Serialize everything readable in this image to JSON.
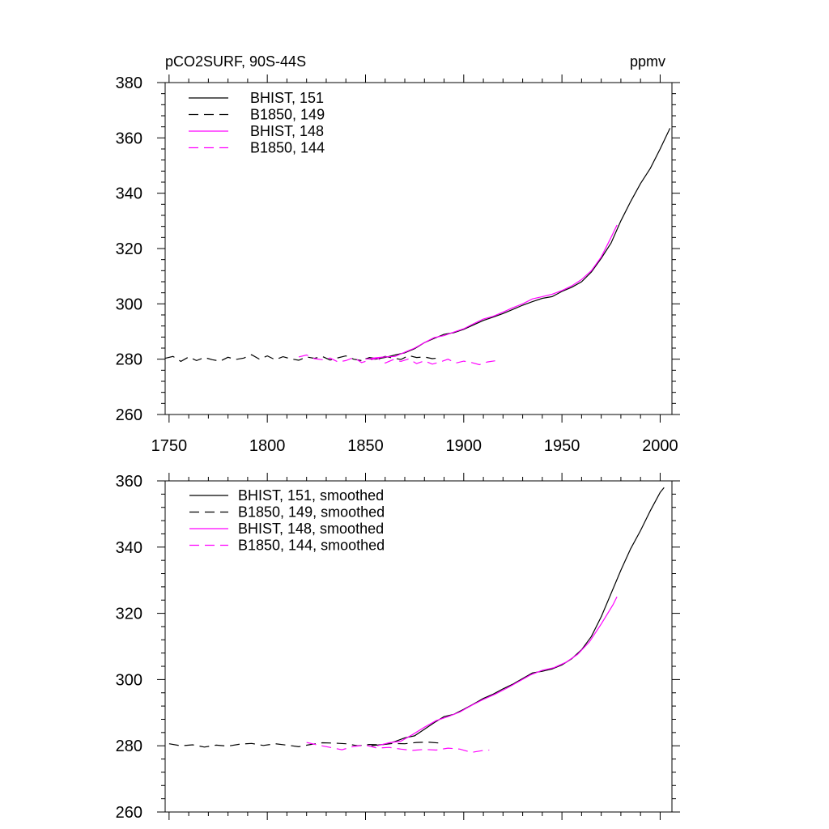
{
  "colors": {
    "black": "#000000",
    "magenta": "#ff00ff",
    "background": "#ffffff"
  },
  "chart_data": [
    {
      "type": "line",
      "title": "pCO2SURF, 90S-44S",
      "units": "ppmv",
      "xlim": [
        1748,
        2006
      ],
      "ylim": [
        260,
        380
      ],
      "xticks": [
        1750,
        1800,
        1850,
        1900,
        1950,
        2000
      ],
      "xtick_labels": [
        "1750",
        "1800",
        "1850",
        "1900",
        "1950",
        "2000"
      ],
      "yticks": [
        260,
        280,
        300,
        320,
        340,
        360,
        380
      ],
      "ytick_labels": [
        "260",
        "280",
        "300",
        "320",
        "340",
        "360",
        "380"
      ],
      "grid": false,
      "legend_position": "top-left",
      "series": [
        {
          "name": "BHIST, 151",
          "color": "#000000",
          "dash": "solid",
          "x": [
            1850,
            1855,
            1860,
            1865,
            1870,
            1875,
            1880,
            1885,
            1890,
            1895,
            1900,
            1905,
            1910,
            1915,
            1920,
            1925,
            1930,
            1935,
            1940,
            1945,
            1950,
            1955,
            1960,
            1965,
            1970,
            1975,
            1980,
            1985,
            1990,
            1995,
            2000,
            2005
          ],
          "y": [
            280.2,
            280.0,
            280.6,
            281.5,
            282.3,
            283.8,
            286.0,
            287.5,
            289.0,
            289.6,
            290.8,
            292.4,
            294.0,
            295.2,
            296.5,
            298.0,
            299.5,
            300.8,
            302.0,
            302.6,
            304.5,
            306.0,
            308.0,
            311.5,
            316.5,
            322.0,
            330.0,
            337.0,
            343.5,
            349.0,
            356.0,
            363.5
          ]
        },
        {
          "name": "B1850, 149",
          "color": "#000000",
          "dash": "dashed",
          "x": [
            1748,
            1752,
            1756,
            1760,
            1764,
            1768,
            1772,
            1776,
            1780,
            1784,
            1788,
            1792,
            1796,
            1800,
            1804,
            1808,
            1812,
            1816,
            1820,
            1824,
            1828,
            1832,
            1836,
            1840,
            1844,
            1848,
            1852,
            1856,
            1860,
            1864,
            1868,
            1872,
            1876,
            1880,
            1884,
            1888
          ],
          "y": [
            280.3,
            281.0,
            279.2,
            280.8,
            279.5,
            280.6,
            279.8,
            279.3,
            280.7,
            279.9,
            280.4,
            281.6,
            280.0,
            281.2,
            279.8,
            280.9,
            280.1,
            279.6,
            280.8,
            280.3,
            281.0,
            279.7,
            280.5,
            281.2,
            280.0,
            279.5,
            280.6,
            280.2,
            281.0,
            280.4,
            279.9,
            281.3,
            280.6,
            280.8,
            280.2,
            280.5
          ]
        },
        {
          "name": "BHIST, 148",
          "color": "#ff00ff",
          "dash": "solid",
          "x": [
            1850,
            1855,
            1860,
            1865,
            1870,
            1875,
            1880,
            1885,
            1890,
            1895,
            1900,
            1905,
            1910,
            1915,
            1920,
            1925,
            1930,
            1935,
            1940,
            1945,
            1950,
            1955,
            1960,
            1965,
            1970,
            1975,
            1978
          ],
          "y": [
            280.0,
            280.5,
            280.8,
            281.0,
            282.5,
            284.0,
            286.0,
            287.8,
            288.5,
            289.8,
            291.0,
            292.8,
            294.5,
            295.5,
            297.0,
            298.6,
            300.0,
            301.8,
            302.6,
            303.5,
            304.8,
            306.5,
            308.8,
            312.0,
            317.0,
            324.0,
            328.5
          ]
        },
        {
          "name": "B1850, 144",
          "color": "#ff00ff",
          "dash": "dashed",
          "x": [
            1816,
            1820,
            1824,
            1828,
            1832,
            1836,
            1840,
            1844,
            1848,
            1852,
            1856,
            1860,
            1864,
            1868,
            1872,
            1876,
            1880,
            1884,
            1888,
            1892,
            1896,
            1900,
            1904,
            1908,
            1912,
            1916
          ],
          "y": [
            280.8,
            281.5,
            280.2,
            279.8,
            280.4,
            279.0,
            279.5,
            280.6,
            278.8,
            279.6,
            280.4,
            278.6,
            279.8,
            279.2,
            280.1,
            278.4,
            279.4,
            278.2,
            279.0,
            280.0,
            278.6,
            279.3,
            278.8,
            278.0,
            279.0,
            279.4
          ]
        }
      ]
    },
    {
      "type": "line",
      "xlim": [
        1748,
        2006
      ],
      "ylim": [
        260,
        360
      ],
      "xticks": [
        1750,
        1800,
        1850,
        1900,
        1950,
        2000
      ],
      "yticks": [
        260,
        280,
        300,
        320,
        340,
        360
      ],
      "ytick_labels": [
        "260",
        "280",
        "300",
        "320",
        "340",
        "360"
      ],
      "grid": false,
      "legend_position": "top-left",
      "series": [
        {
          "name": "BHIST, 151, smoothed",
          "color": "#000000",
          "dash": "solid",
          "x": [
            1853,
            1860,
            1865,
            1870,
            1875,
            1880,
            1885,
            1890,
            1895,
            1900,
            1905,
            1910,
            1915,
            1920,
            1925,
            1930,
            1935,
            1940,
            1945,
            1950,
            1955,
            1960,
            1965,
            1970,
            1975,
            1980,
            1985,
            1990,
            1995,
            2000,
            2002
          ],
          "y": [
            280.0,
            280.5,
            281.3,
            282.4,
            283.0,
            285.0,
            287.0,
            288.8,
            289.5,
            291.0,
            292.6,
            294.3,
            295.6,
            297.2,
            298.6,
            300.3,
            302.0,
            302.5,
            303.2,
            304.4,
            306.3,
            309.0,
            313.0,
            319.0,
            326.0,
            333.0,
            339.5,
            345.0,
            351.0,
            356.5,
            358.0
          ]
        },
        {
          "name": "B1850, 149, smoothed",
          "color": "#000000",
          "dash": "dashed",
          "x": [
            1750,
            1756,
            1762,
            1768,
            1774,
            1780,
            1786,
            1792,
            1798,
            1804,
            1810,
            1816,
            1822,
            1828,
            1834,
            1840,
            1846,
            1852,
            1858,
            1864,
            1870,
            1876,
            1882,
            1888
          ],
          "y": [
            280.6,
            280.0,
            280.3,
            279.6,
            280.2,
            279.9,
            280.5,
            280.7,
            280.1,
            280.6,
            280.2,
            279.7,
            280.4,
            280.9,
            280.8,
            280.6,
            280.0,
            280.4,
            280.3,
            280.7,
            280.6,
            281.0,
            281.1,
            280.8
          ]
        },
        {
          "name": "BHIST, 148, smoothed",
          "color": "#ff00ff",
          "dash": "solid",
          "x": [
            1856,
            1862,
            1868,
            1874,
            1880,
            1886,
            1892,
            1898,
            1904,
            1910,
            1916,
            1922,
            1928,
            1934,
            1940,
            1946,
            1952,
            1958,
            1964,
            1970,
            1976,
            1978
          ],
          "y": [
            280.0,
            280.9,
            281.4,
            283.4,
            285.6,
            287.6,
            288.8,
            290.2,
            292.2,
            294.0,
            295.6,
            297.4,
            299.4,
            301.4,
            302.8,
            303.6,
            305.2,
            307.6,
            311.4,
            316.8,
            322.6,
            325.0
          ]
        },
        {
          "name": "B1850, 144, smoothed",
          "color": "#ff00ff",
          "dash": "dashed",
          "x": [
            1820,
            1826,
            1832,
            1838,
            1844,
            1850,
            1856,
            1862,
            1868,
            1874,
            1880,
            1886,
            1892,
            1898,
            1904,
            1910,
            1913
          ],
          "y": [
            281.0,
            280.2,
            279.5,
            278.8,
            279.8,
            280.2,
            279.3,
            279.5,
            279.0,
            278.6,
            278.9,
            278.7,
            279.3,
            279.0,
            278.0,
            278.6,
            278.7
          ]
        }
      ]
    }
  ]
}
